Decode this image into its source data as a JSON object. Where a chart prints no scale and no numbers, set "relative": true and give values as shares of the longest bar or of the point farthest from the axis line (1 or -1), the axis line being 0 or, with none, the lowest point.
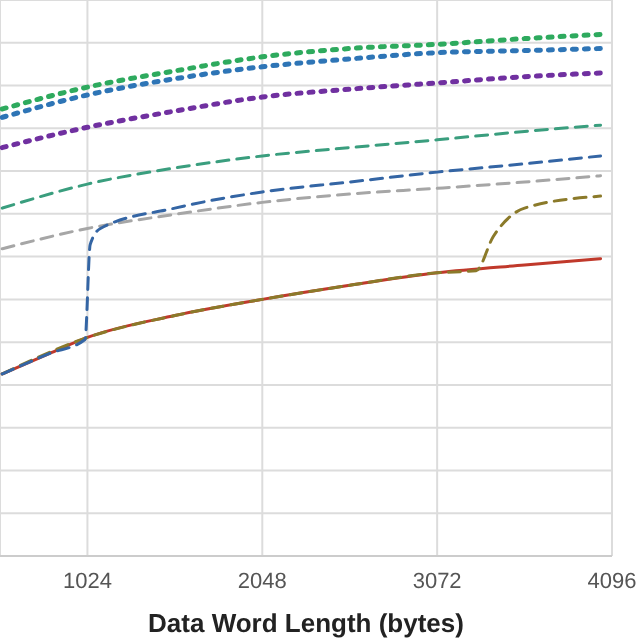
{
  "chart_data": {
    "type": "line",
    "relative": true,
    "xlabel": "Data Word Length (bytes)",
    "xlim": [
      512,
      4096
    ],
    "xticks": [
      1024,
      2048,
      3072,
      4096
    ],
    "grid": true,
    "legend": false,
    "marker": "none",
    "series": [
      {
        "color": "#2eaa5e",
        "line_style": "dotted",
        "x": [
          525,
          1024,
          1536,
          2048,
          2560,
          3072,
          3584,
          4029
        ],
        "values": [
          0.857,
          0.899,
          0.93,
          0.957,
          0.973,
          0.981,
          0.992,
          1
        ]
      },
      {
        "color": "#2e75b6",
        "line_style": "dotted",
        "x": [
          525,
          1024,
          1536,
          2048,
          2560,
          3072,
          3584,
          4029
        ],
        "values": [
          0.841,
          0.884,
          0.915,
          0.938,
          0.953,
          0.965,
          0.969,
          0.973
        ]
      },
      {
        "color": "#7030a0",
        "line_style": "dotted",
        "x": [
          525,
          1024,
          1536,
          2048,
          2560,
          3072,
          3584,
          4029
        ],
        "values": [
          0.783,
          0.822,
          0.853,
          0.88,
          0.895,
          0.907,
          0.919,
          0.926
        ]
      },
      {
        "color": "#3a9e7e",
        "line_style": "dashed",
        "x": [
          525,
          1024,
          1536,
          2048,
          2560,
          3072,
          3584,
          4029
        ],
        "values": [
          0.667,
          0.713,
          0.744,
          0.767,
          0.783,
          0.798,
          0.814,
          0.826
        ]
      },
      {
        "color": "#3465a4",
        "line_style": "dashed",
        "x": [
          525,
          800,
          1010,
          1040,
          1100,
          1536,
          2048,
          2560,
          3072,
          3584,
          4029
        ],
        "values": [
          0.349,
          0.388,
          0.415,
          0.597,
          0.628,
          0.667,
          0.698,
          0.717,
          0.736,
          0.752,
          0.767
        ]
      },
      {
        "color": "#a6a6a6",
        "line_style": "dashed",
        "x": [
          525,
          1024,
          1536,
          2048,
          2560,
          3072,
          3584,
          4029
        ],
        "values": [
          0.589,
          0.628,
          0.655,
          0.678,
          0.694,
          0.705,
          0.717,
          0.729
        ]
      },
      {
        "color": "#8b7a2a",
        "line_style": "dashed",
        "x": [
          525,
          1024,
          1536,
          2048,
          2560,
          3072,
          3300,
          3400,
          3500,
          3584,
          4029
        ],
        "values": [
          0.349,
          0.419,
          0.461,
          0.492,
          0.519,
          0.543,
          0.547,
          0.612,
          0.651,
          0.667,
          0.69
        ]
      },
      {
        "color": "#c0392b",
        "line_style": "solid",
        "x": [
          525,
          800,
          1024,
          1536,
          2048,
          2560,
          3072,
          3584,
          4029
        ],
        "values": [
          0.349,
          0.388,
          0.419,
          0.461,
          0.492,
          0.519,
          0.543,
          0.558,
          0.57
        ]
      }
    ]
  }
}
